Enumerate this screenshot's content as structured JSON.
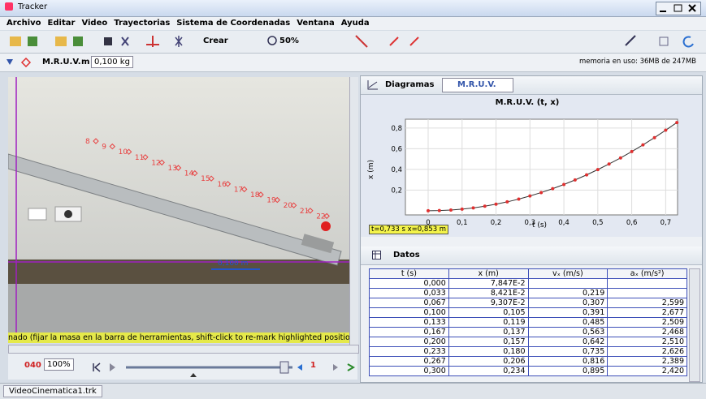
{
  "window": {
    "title": "Tracker"
  },
  "menu": [
    "Archivo",
    "Editar",
    "Video",
    "Trayectorias",
    "Sistema de Coordenadas",
    "Ventana",
    "Ayuda"
  ],
  "toolbar": {
    "create": "Crear",
    "zoom": "50%"
  },
  "track_bar": {
    "track": "M.R.U.V.",
    "mass_label": "m",
    "mass": "0,100 kg",
    "memory": "memoria en uso: 36MB de 247MB"
  },
  "video": {
    "point_labels": [
      "8",
      "9",
      "10",
      "11",
      "12",
      "13",
      "14",
      "15",
      "16",
      "17",
      "18",
      "19",
      "20",
      "21",
      "22"
    ],
    "calibration": "0,100 m",
    "status": "nado (fijar la masa en la barra de herramientas, shift-click to re-mark highlighted position)",
    "frame": "040",
    "zoom": "100%",
    "step": "1"
  },
  "plot_panel": {
    "tab": "Diagramas",
    "track": "M.R.U.V.",
    "readout": "t=0,733 s  x=0,853 m"
  },
  "chart_data": {
    "type": "line",
    "title": "M.R.U.V. (t, x)",
    "x_label": "t (s)",
    "y_label": "x (m)",
    "x": [
      0,
      0.033,
      0.067,
      0.1,
      0.133,
      0.167,
      0.2,
      0.233,
      0.267,
      0.3,
      0.333,
      0.367,
      0.4,
      0.433,
      0.467,
      0.5,
      0.533,
      0.567,
      0.6,
      0.633,
      0.667,
      0.7,
      0.733
    ],
    "values": [
      0,
      0.002,
      0.007,
      0.016,
      0.028,
      0.044,
      0.064,
      0.086,
      0.113,
      0.143,
      0.176,
      0.214,
      0.254,
      0.298,
      0.347,
      0.398,
      0.452,
      0.511,
      0.572,
      0.637,
      0.707,
      0.779,
      0.853
    ],
    "color": "#e03030",
    "line_color": "#333333",
    "xlim": [
      -0.067,
      0.735
    ],
    "ylim": [
      -0.04,
      0.885
    ],
    "xticks": [
      0,
      {
        "value": 0.1,
        "label": "0,1"
      },
      {
        "value": 0.2,
        "label": "0,2"
      },
      {
        "value": 0.3,
        "label": "0,3"
      },
      {
        "value": 0.4,
        "label": "0,4"
      },
      {
        "value": 0.5,
        "label": "0,5"
      },
      {
        "value": 0.6,
        "label": "0,6"
      },
      {
        "value": 0.7,
        "label": "0,7"
      }
    ],
    "yticks": [
      {
        "value": 0.2,
        "label": "0,2"
      },
      {
        "value": 0.4,
        "label": "0,4"
      },
      {
        "value": 0.6,
        "label": "0,6"
      },
      {
        "value": 0.8,
        "label": "0,8"
      }
    ],
    "grid": true
  },
  "data_panel": {
    "title": "Datos",
    "table": {
      "header": [
        "t (s)",
        "x (m)",
        "vₓ (m/s)",
        "aₓ (m/s²)"
      ],
      "rows": [
        [
          "0,000",
          "7,847E-2",
          null,
          null
        ],
        [
          "0,033",
          "8,421E-2",
          "0,219",
          null
        ],
        [
          "0,067",
          "9,307E-2",
          "0,307",
          "2,599"
        ],
        [
          "0,100",
          "0,105",
          "0,391",
          "2,677"
        ],
        [
          "0,133",
          "0,119",
          "0,485",
          "2,509"
        ],
        [
          "0,167",
          "0,137",
          "0,563",
          "2,468"
        ],
        [
          "0,200",
          "0,157",
          "0,642",
          "2,510"
        ],
        [
          "0,233",
          "0,180",
          "0,735",
          "2,626"
        ],
        [
          "0,267",
          "0,206",
          "0,816",
          "2,389"
        ],
        [
          "0,300",
          "0,234",
          "0,895",
          "2,420"
        ]
      ]
    }
  },
  "tabs": [
    "VideoCinematica1.trk"
  ]
}
